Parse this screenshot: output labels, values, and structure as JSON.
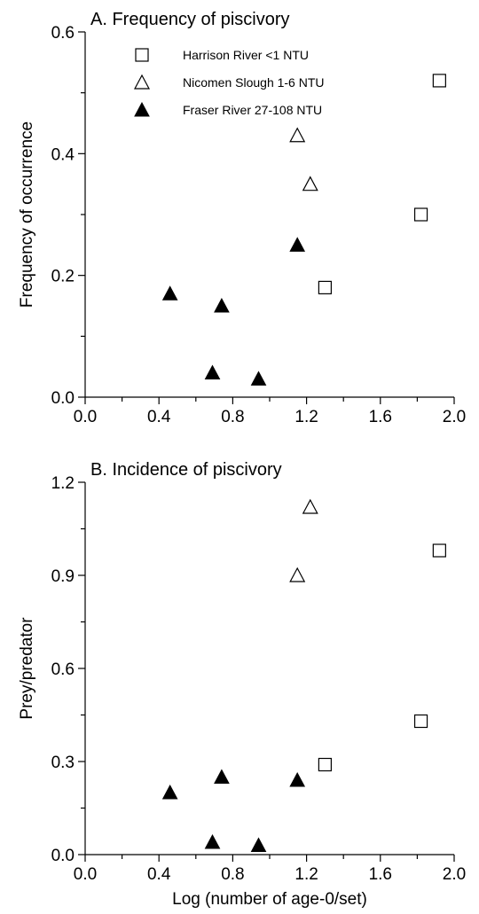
{
  "chart_data": [
    {
      "type": "scatter",
      "title": "A. Frequency of piscivory",
      "xlabel": "",
      "ylabel": "Frequency of occurrence",
      "xlim": [
        0.0,
        2.0
      ],
      "ylim": [
        0.0,
        0.6
      ],
      "x_ticks": [
        "0.0",
        "0.4",
        "0.8",
        "1.2",
        "1.6",
        "2.0"
      ],
      "y_ticks": [
        "0.0",
        "0.2",
        "0.4",
        "0.6"
      ],
      "legend_placement": "top",
      "series": [
        {
          "name": "Harrison River <1 NTU",
          "marker": "open-square",
          "x": [
            1.3,
            1.82,
            1.92
          ],
          "y": [
            0.18,
            0.3,
            0.52
          ]
        },
        {
          "name": "Nicomen Slough 1-6 NTU",
          "marker": "open-triangle",
          "x": [
            1.15,
            1.22
          ],
          "y": [
            0.43,
            0.35
          ]
        },
        {
          "name": "Fraser River 27-108 NTU",
          "marker": "filled-triangle",
          "x": [
            0.46,
            0.74,
            0.69,
            0.94,
            1.15
          ],
          "y": [
            0.17,
            0.15,
            0.04,
            0.03,
            0.25
          ]
        }
      ]
    },
    {
      "type": "scatter",
      "title": "B. Incidence of piscivory",
      "xlabel": "Log (number of age-0/set)",
      "ylabel": "Prey/predator",
      "xlim": [
        0.0,
        2.0
      ],
      "ylim": [
        0.0,
        1.2
      ],
      "x_ticks": [
        "0.0",
        "0.4",
        "0.8",
        "1.2",
        "1.6",
        "2.0"
      ],
      "y_ticks": [
        "0.0",
        "0.3",
        "0.6",
        "0.9",
        "1.2"
      ],
      "series": [
        {
          "name": "Harrison River <1 NTU",
          "marker": "open-square",
          "x": [
            1.3,
            1.82,
            1.92
          ],
          "y": [
            0.29,
            0.43,
            0.98
          ]
        },
        {
          "name": "Nicomen Slough 1-6 NTU",
          "marker": "open-triangle",
          "x": [
            1.15,
            1.22
          ],
          "y": [
            0.9,
            1.12
          ]
        },
        {
          "name": "Fraser River 27-108 NTU",
          "marker": "filled-triangle",
          "x": [
            0.46,
            0.74,
            0.69,
            0.94,
            1.15
          ],
          "y": [
            0.2,
            0.25,
            0.04,
            0.03,
            0.24
          ]
        }
      ]
    }
  ]
}
